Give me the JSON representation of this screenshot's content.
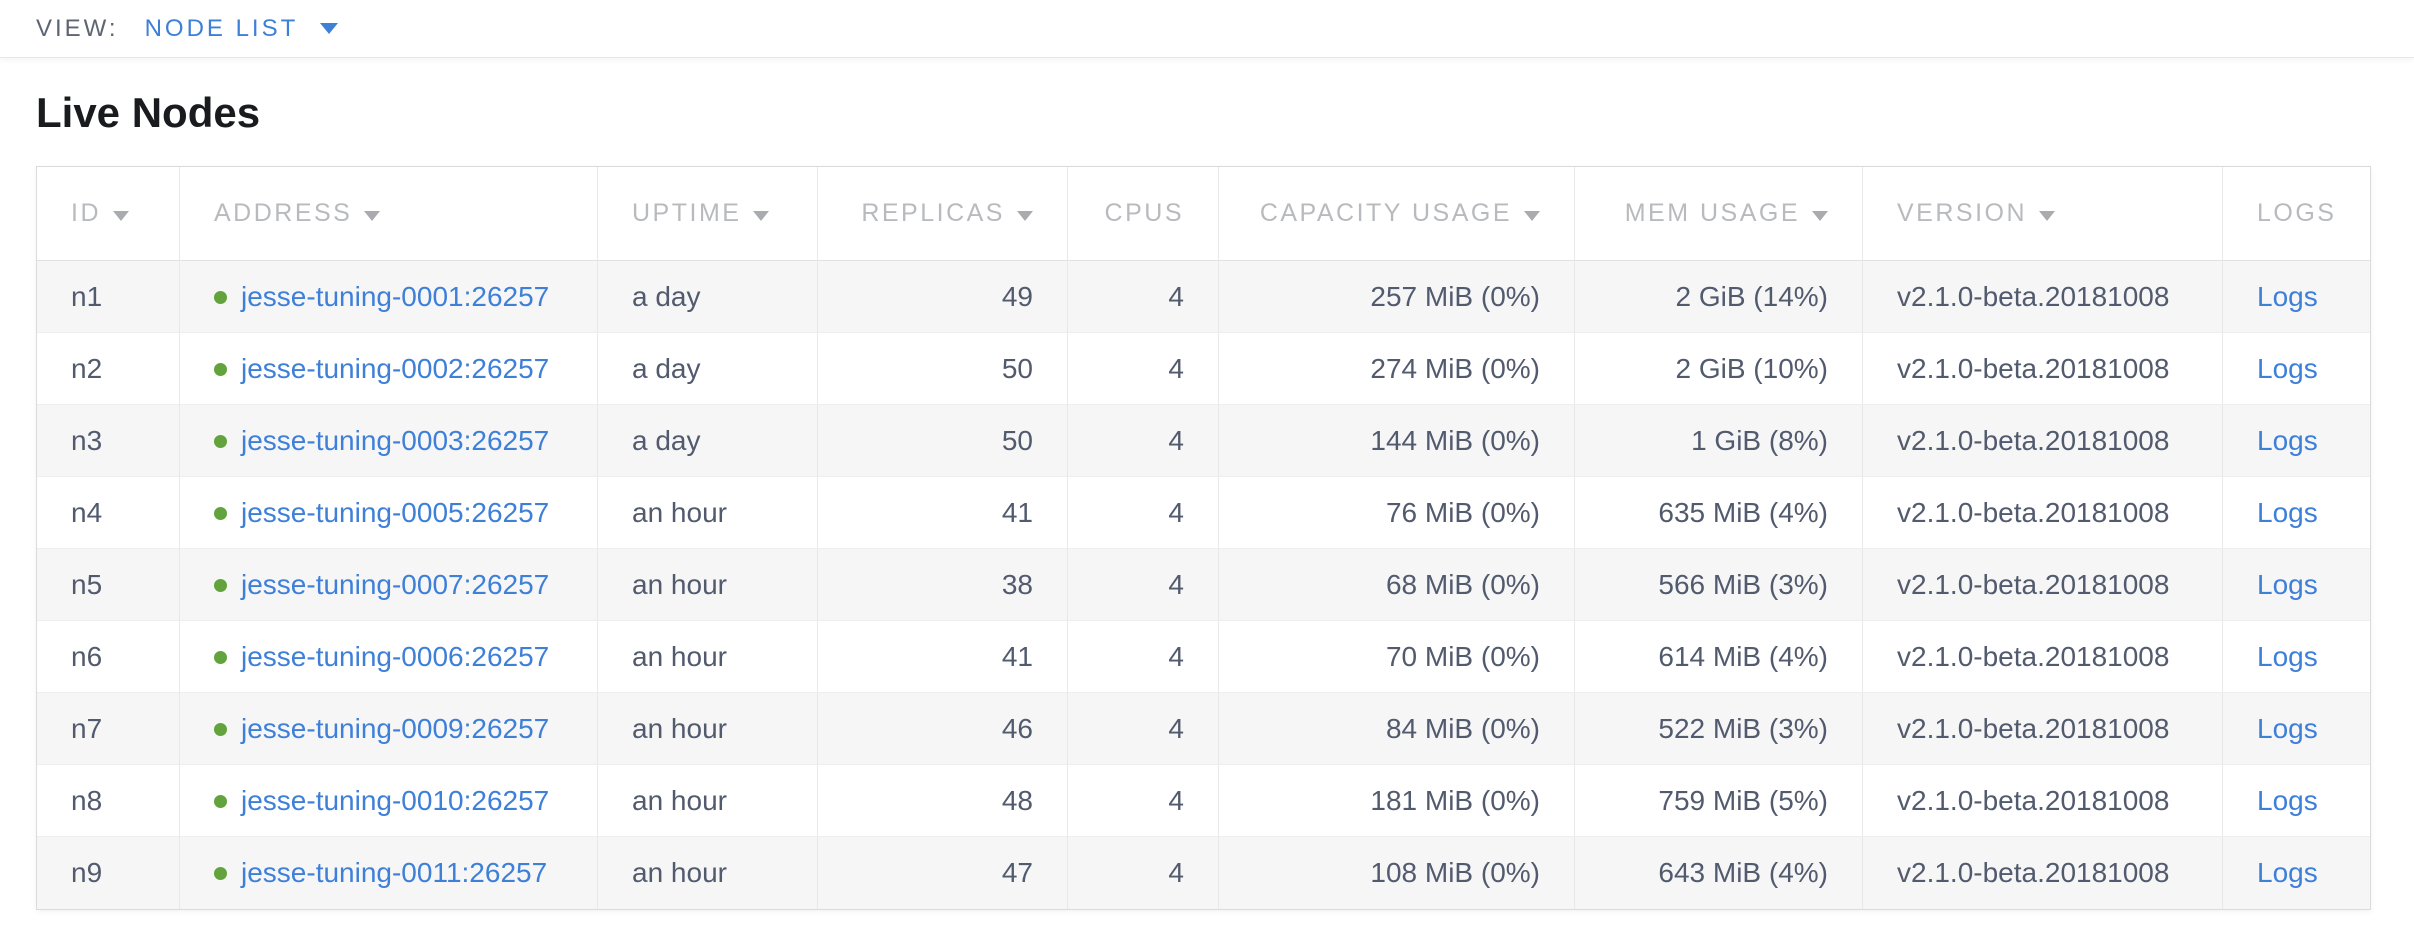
{
  "view_bar": {
    "label": "VIEW:",
    "selected": "NODE LIST"
  },
  "page": {
    "title": "Live Nodes"
  },
  "table": {
    "columns": [
      {
        "key": "id",
        "label": "ID",
        "sortable": true,
        "align": "left"
      },
      {
        "key": "address",
        "label": "ADDRESS",
        "sortable": true,
        "align": "left"
      },
      {
        "key": "uptime",
        "label": "UPTIME",
        "sortable": true,
        "align": "left"
      },
      {
        "key": "replicas",
        "label": "REPLICAS",
        "sortable": true,
        "align": "right"
      },
      {
        "key": "cpus",
        "label": "CPUS",
        "sortable": false,
        "align": "right"
      },
      {
        "key": "capacity",
        "label": "CAPACITY USAGE",
        "sortable": true,
        "align": "right"
      },
      {
        "key": "mem",
        "label": "MEM USAGE",
        "sortable": true,
        "align": "right"
      },
      {
        "key": "version",
        "label": "VERSION",
        "sortable": true,
        "align": "left"
      },
      {
        "key": "logs",
        "label": "LOGS",
        "sortable": false,
        "align": "left"
      }
    ],
    "rows": [
      {
        "id": "n1",
        "address": "jesse-tuning-0001:26257",
        "status": "healthy",
        "uptime": "a day",
        "replicas": "49",
        "cpus": "4",
        "capacity": "257 MiB (0%)",
        "mem": "2 GiB (14%)",
        "version": "v2.1.0-beta.20181008",
        "logs": "Logs"
      },
      {
        "id": "n2",
        "address": "jesse-tuning-0002:26257",
        "status": "healthy",
        "uptime": "a day",
        "replicas": "50",
        "cpus": "4",
        "capacity": "274 MiB (0%)",
        "mem": "2 GiB (10%)",
        "version": "v2.1.0-beta.20181008",
        "logs": "Logs"
      },
      {
        "id": "n3",
        "address": "jesse-tuning-0003:26257",
        "status": "healthy",
        "uptime": "a day",
        "replicas": "50",
        "cpus": "4",
        "capacity": "144 MiB (0%)",
        "mem": "1 GiB (8%)",
        "version": "v2.1.0-beta.20181008",
        "logs": "Logs"
      },
      {
        "id": "n4",
        "address": "jesse-tuning-0005:26257",
        "status": "healthy",
        "uptime": "an hour",
        "replicas": "41",
        "cpus": "4",
        "capacity": "76 MiB (0%)",
        "mem": "635 MiB (4%)",
        "version": "v2.1.0-beta.20181008",
        "logs": "Logs"
      },
      {
        "id": "n5",
        "address": "jesse-tuning-0007:26257",
        "status": "healthy",
        "uptime": "an hour",
        "replicas": "38",
        "cpus": "4",
        "capacity": "68 MiB (0%)",
        "mem": "566 MiB (3%)",
        "version": "v2.1.0-beta.20181008",
        "logs": "Logs"
      },
      {
        "id": "n6",
        "address": "jesse-tuning-0006:26257",
        "status": "healthy",
        "uptime": "an hour",
        "replicas": "41",
        "cpus": "4",
        "capacity": "70 MiB (0%)",
        "mem": "614 MiB (4%)",
        "version": "v2.1.0-beta.20181008",
        "logs": "Logs"
      },
      {
        "id": "n7",
        "address": "jesse-tuning-0009:26257",
        "status": "healthy",
        "uptime": "an hour",
        "replicas": "46",
        "cpus": "4",
        "capacity": "84 MiB (0%)",
        "mem": "522 MiB (3%)",
        "version": "v2.1.0-beta.20181008",
        "logs": "Logs"
      },
      {
        "id": "n8",
        "address": "jesse-tuning-0010:26257",
        "status": "healthy",
        "uptime": "an hour",
        "replicas": "48",
        "cpus": "4",
        "capacity": "181 MiB (0%)",
        "mem": "759 MiB (5%)",
        "version": "v2.1.0-beta.20181008",
        "logs": "Logs"
      },
      {
        "id": "n9",
        "address": "jesse-tuning-0011:26257",
        "status": "healthy",
        "uptime": "an hour",
        "replicas": "47",
        "cpus": "4",
        "capacity": "108 MiB (0%)",
        "mem": "643 MiB (4%)",
        "version": "v2.1.0-beta.20181008",
        "logs": "Logs"
      }
    ]
  },
  "colors": {
    "accent": "#3e7fd8",
    "healthy": "#62a33d",
    "header-gray": "#b8babd",
    "cell-text": "#525a6e",
    "heading": "#191b1f",
    "row-stripe": "#f6f6f7"
  }
}
